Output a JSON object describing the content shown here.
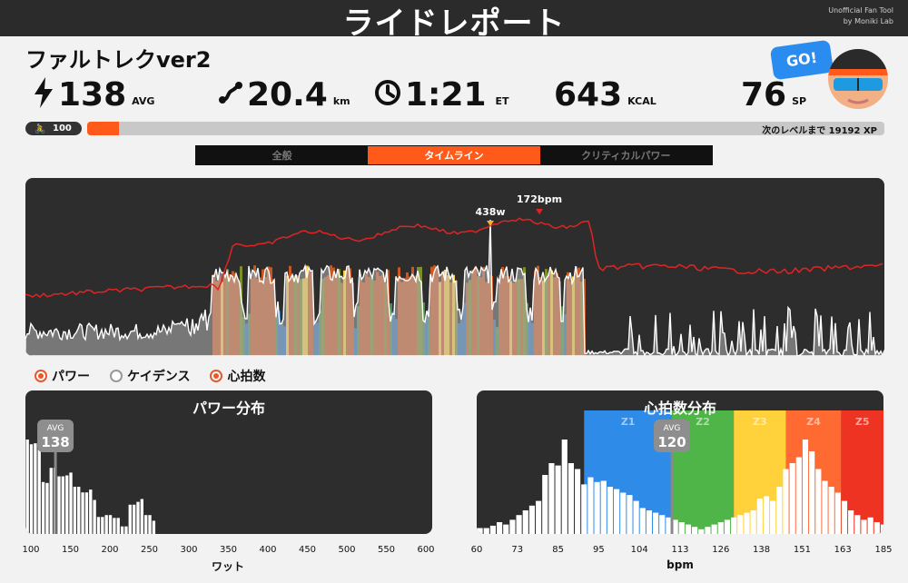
{
  "header": {
    "title": "ライドレポート",
    "credit_line1": "Unofficial Fan Tool",
    "credit_line2": "by Moniki Lab"
  },
  "ride": {
    "name": "ファルトレクver2"
  },
  "stats": [
    {
      "value": "138",
      "unit": "AVG",
      "icon": "bolt-icon"
    },
    {
      "value": "20.4",
      "unit": "km",
      "icon": "route-icon"
    },
    {
      "value": "1:21",
      "unit": "ET",
      "icon": "clock-icon"
    },
    {
      "value": "643",
      "unit": "KCAL",
      "icon": ""
    },
    {
      "value": "76",
      "unit": "SP",
      "icon": ""
    }
  ],
  "level": {
    "value": "100",
    "icon": "cyclist-icon"
  },
  "xp": {
    "text": "次のレベルまで 19192 XP",
    "progress": 0.04
  },
  "go_button": "GO!",
  "tabs": [
    {
      "label": "全般",
      "active": false
    },
    {
      "label": "タイムライン",
      "active": true
    },
    {
      "label": "クリティカルパワー",
      "active": false
    }
  ],
  "timeline": {
    "peak_power_label": "438w",
    "peak_hr_label": "172bpm"
  },
  "legend": [
    {
      "label": "パワー",
      "checked": true
    },
    {
      "label": "ケイデンス",
      "checked": false
    },
    {
      "label": "心拍数",
      "checked": true
    }
  ],
  "colors": {
    "accent": "#ff5a1a",
    "panel": "#2d2d2d",
    "hr_line": "#e02424",
    "z1": "#2e8be8",
    "z2": "#4fb548",
    "z3": "#ffd23c",
    "z4": "#ff6a33",
    "z5": "#ee3322"
  },
  "chart_data": [
    {
      "type": "bar",
      "title": "パワー分布",
      "xlabel": "ワット",
      "xlim": [
        100,
        600
      ],
      "x_ticks": [
        "100",
        "150",
        "200",
        "250",
        "300",
        "350",
        "400",
        "450",
        "500",
        "550",
        "600"
      ],
      "avg": {
        "label": "AVG",
        "value": 138
      },
      "bins": [
        100,
        105,
        110,
        115,
        120,
        125,
        130,
        135,
        140,
        145,
        150,
        155,
        160,
        165,
        170,
        175,
        180,
        185,
        190,
        195,
        200,
        205,
        210,
        215,
        220,
        225,
        230,
        235,
        240,
        245,
        250,
        255,
        260,
        265,
        270,
        275,
        280,
        285,
        290,
        295,
        300,
        305,
        310,
        315,
        320,
        325,
        330,
        335,
        340,
        345,
        350,
        355,
        360,
        365,
        370,
        375,
        380,
        385,
        390,
        395,
        400,
        405,
        410,
        415,
        420,
        425,
        430,
        435,
        440,
        445
      ],
      "values": [
        100,
        95,
        96,
        97,
        55,
        54,
        70,
        70,
        61,
        61,
        62,
        65,
        50,
        50,
        44,
        44,
        47,
        36,
        18,
        18,
        20,
        20,
        17,
        17,
        8,
        8,
        31,
        31,
        34,
        37,
        20,
        20,
        14,
        0,
        0,
        0,
        0,
        0,
        0,
        0,
        0,
        0,
        0,
        0,
        0,
        0,
        0,
        0,
        0,
        0,
        0,
        0,
        0,
        0,
        0,
        0,
        0,
        0,
        0,
        0,
        0,
        0,
        0,
        0,
        0,
        0,
        0,
        0,
        0,
        0
      ]
    },
    {
      "type": "bar",
      "title": "心拍数分布",
      "xlabel": "bpm",
      "xlim": [
        60,
        185
      ],
      "x_ticks": [
        "60",
        "73",
        "85",
        "95",
        "104",
        "113",
        "126",
        "138",
        "151",
        "163",
        "185"
      ],
      "avg": {
        "label": "AVG",
        "value": 120
      },
      "zones": [
        {
          "label": "Z1",
          "from": 93,
          "to": 120
        },
        {
          "label": "Z2",
          "from": 120,
          "to": 139
        },
        {
          "label": "Z3",
          "from": 139,
          "to": 155
        },
        {
          "label": "Z4",
          "from": 155,
          "to": 172
        },
        {
          "label": "Z5",
          "from": 172,
          "to": 185
        }
      ],
      "bins": [
        60,
        62,
        64,
        66,
        68,
        70,
        72,
        74,
        76,
        78,
        80,
        82,
        84,
        86,
        88,
        90,
        92,
        94,
        96,
        98,
        100,
        102,
        104,
        106,
        108,
        110,
        112,
        114,
        116,
        118,
        120,
        122,
        124,
        126,
        128,
        130,
        132,
        134,
        136,
        138,
        140,
        142,
        144,
        146,
        148,
        150,
        152,
        154,
        156,
        158,
        160,
        162,
        164,
        166,
        168,
        170,
        172,
        174,
        176,
        178,
        180,
        182,
        184
      ],
      "values": [
        5,
        5,
        7,
        10,
        8,
        12,
        16,
        20,
        24,
        28,
        50,
        60,
        58,
        80,
        60,
        55,
        42,
        48,
        44,
        45,
        40,
        38,
        35,
        33,
        28,
        22,
        20,
        18,
        16,
        14,
        12,
        10,
        8,
        6,
        4,
        6,
        8,
        10,
        12,
        14,
        16,
        18,
        20,
        30,
        32,
        28,
        40,
        55,
        60,
        65,
        80,
        70,
        55,
        45,
        40,
        35,
        28,
        20,
        16,
        12,
        14,
        10,
        8
      ]
    }
  ]
}
